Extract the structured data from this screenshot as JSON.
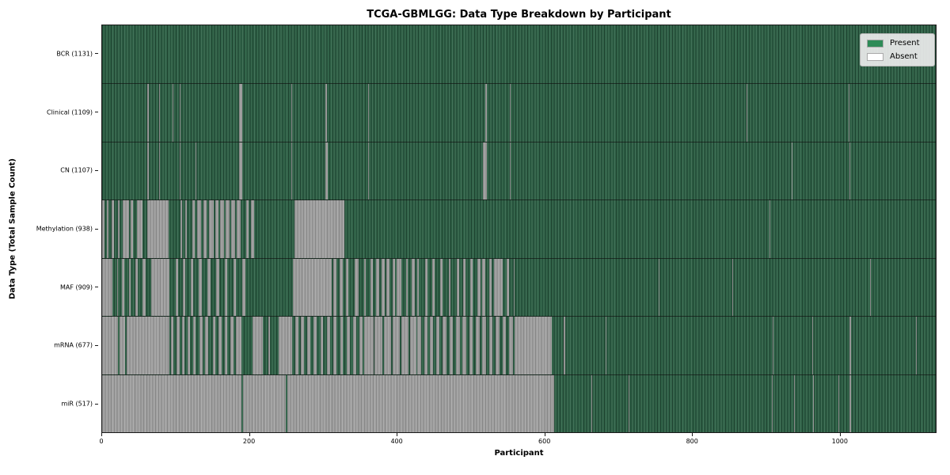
{
  "chart_data": {
    "type": "heatmap",
    "title": "TCGA-GBMLGG: Data Type Breakdown by Participant",
    "xlabel": "Participant",
    "ylabel": "Data Type (Total Sample Count)",
    "x_ticks": [
      0,
      200,
      400,
      600,
      800,
      1000
    ],
    "xlim": [
      0,
      1131
    ],
    "grid": false,
    "legend_position": "upper right",
    "legend": [
      {
        "label": "Present",
        "color": "#2e8b57"
      },
      {
        "label": "Absent",
        "color": "#ffffff"
      }
    ],
    "colors": {
      "present_fill": "#2d6045",
      "absent_fill": "#9d9d9d",
      "axis": "#1a1a1a",
      "background": "#ffffff"
    },
    "rows": [
      {
        "label": "BCR (1131)",
        "data_type": "BCR",
        "total_samples": 1131,
        "absent_segments": []
      },
      {
        "label": "Clinical (1109)",
        "data_type": "Clinical",
        "total_samples": 1109,
        "absent_segments": [
          [
            61,
            63
          ],
          [
            77,
            78
          ],
          [
            96,
            97
          ],
          [
            105,
            106
          ],
          [
            186,
            190
          ],
          [
            257,
            258
          ],
          [
            303,
            305
          ],
          [
            361,
            362
          ],
          [
            520,
            522
          ],
          [
            553,
            554
          ],
          [
            874,
            875
          ],
          [
            1013,
            1014
          ]
        ]
      },
      {
        "label": "CN (1107)",
        "data_type": "CN",
        "total_samples": 1107,
        "absent_segments": [
          [
            61,
            63
          ],
          [
            77,
            78
          ],
          [
            105,
            106
          ],
          [
            127,
            128
          ],
          [
            186,
            190
          ],
          [
            257,
            258
          ],
          [
            303,
            306
          ],
          [
            361,
            362
          ],
          [
            517,
            522
          ],
          [
            553,
            554
          ],
          [
            935,
            936
          ],
          [
            1014,
            1015
          ]
        ]
      },
      {
        "label": "Methylation (938)",
        "data_type": "Methylation",
        "total_samples": 938,
        "absent_segments": [
          [
            0,
            3
          ],
          [
            6,
            9
          ],
          [
            13,
            16
          ],
          [
            21,
            24
          ],
          [
            28,
            36
          ],
          [
            39,
            42
          ],
          [
            47,
            55
          ],
          [
            61,
            90
          ],
          [
            106,
            108
          ],
          [
            113,
            115
          ],
          [
            122,
            126
          ],
          [
            129,
            134
          ],
          [
            137,
            142
          ],
          [
            145,
            151
          ],
          [
            154,
            158
          ],
          [
            160,
            165
          ],
          [
            168,
            173
          ],
          [
            175,
            180
          ],
          [
            183,
            188
          ],
          [
            196,
            199
          ],
          [
            202,
            206
          ],
          [
            261,
            329
          ],
          [
            905,
            906
          ]
        ]
      },
      {
        "label": "MAF (909)",
        "data_type": "MAF",
        "total_samples": 909,
        "absent_segments": [
          [
            0,
            14
          ],
          [
            20,
            22
          ],
          [
            27,
            30
          ],
          [
            36,
            39
          ],
          [
            45,
            48
          ],
          [
            55,
            59
          ],
          [
            67,
            91
          ],
          [
            100,
            103
          ],
          [
            110,
            113
          ],
          [
            120,
            124
          ],
          [
            131,
            135
          ],
          [
            143,
            147
          ],
          [
            155,
            159
          ],
          [
            166,
            170
          ],
          [
            178,
            182
          ],
          [
            190,
            194
          ],
          [
            259,
            311
          ],
          [
            314,
            318
          ],
          [
            322,
            326
          ],
          [
            331,
            334
          ],
          [
            343,
            348
          ],
          [
            355,
            358
          ],
          [
            364,
            367
          ],
          [
            372,
            376
          ],
          [
            379,
            383
          ],
          [
            386,
            390
          ],
          [
            394,
            397
          ],
          [
            400,
            406
          ],
          [
            412,
            415
          ],
          [
            420,
            424
          ],
          [
            427,
            430
          ],
          [
            438,
            441
          ],
          [
            448,
            451
          ],
          [
            459,
            462
          ],
          [
            470,
            473
          ],
          [
            481,
            484
          ],
          [
            490,
            493
          ],
          [
            499,
            503
          ],
          [
            509,
            513
          ],
          [
            516,
            520
          ],
          [
            525,
            528
          ],
          [
            532,
            543
          ],
          [
            549,
            552
          ],
          [
            558,
            560
          ],
          [
            755,
            756
          ],
          [
            855,
            856
          ],
          [
            1042,
            1043
          ]
        ]
      },
      {
        "label": "mRNA (677)",
        "data_type": "mRNA",
        "total_samples": 677,
        "absent_segments": [
          [
            0,
            22
          ],
          [
            24,
            31
          ],
          [
            33,
            91
          ],
          [
            93,
            97
          ],
          [
            101,
            105
          ],
          [
            109,
            112
          ],
          [
            116,
            119
          ],
          [
            124,
            127
          ],
          [
            132,
            136
          ],
          [
            140,
            144
          ],
          [
            150,
            154
          ],
          [
            158,
            162
          ],
          [
            166,
            170
          ],
          [
            174,
            178
          ],
          [
            182,
            189
          ],
          [
            204,
            218
          ],
          [
            226,
            228
          ],
          [
            240,
            258
          ],
          [
            262,
            266
          ],
          [
            270,
            274
          ],
          [
            278,
            282
          ],
          [
            287,
            291
          ],
          [
            296,
            300
          ],
          [
            305,
            309
          ],
          [
            314,
            318
          ],
          [
            323,
            327
          ],
          [
            332,
            336
          ],
          [
            341,
            345
          ],
          [
            349,
            353
          ],
          [
            355,
            368
          ],
          [
            370,
            380
          ],
          [
            382,
            392
          ],
          [
            394,
            404
          ],
          [
            406,
            416
          ],
          [
            418,
            426
          ],
          [
            428,
            433
          ],
          [
            437,
            441
          ],
          [
            445,
            449
          ],
          [
            453,
            458
          ],
          [
            462,
            467
          ],
          [
            471,
            476
          ],
          [
            480,
            485
          ],
          [
            489,
            494
          ],
          [
            498,
            503
          ],
          [
            507,
            512
          ],
          [
            516,
            521
          ],
          [
            525,
            530
          ],
          [
            534,
            539
          ],
          [
            543,
            548
          ],
          [
            552,
            557
          ],
          [
            560,
            610
          ],
          [
            626,
            628
          ],
          [
            683,
            684
          ],
          [
            910,
            911
          ],
          [
            963,
            964
          ],
          [
            1014,
            1016
          ],
          [
            1104,
            1105
          ]
        ]
      },
      {
        "label": "miR (517)",
        "data_type": "miR",
        "total_samples": 517,
        "absent_segments": [
          [
            0,
            189
          ],
          [
            191,
            249
          ],
          [
            251,
            613
          ],
          [
            664,
            665
          ],
          [
            714,
            715
          ],
          [
            909,
            910
          ],
          [
            939,
            940
          ],
          [
            964,
            965
          ],
          [
            999,
            1000
          ],
          [
            1014,
            1016
          ]
        ]
      }
    ]
  }
}
